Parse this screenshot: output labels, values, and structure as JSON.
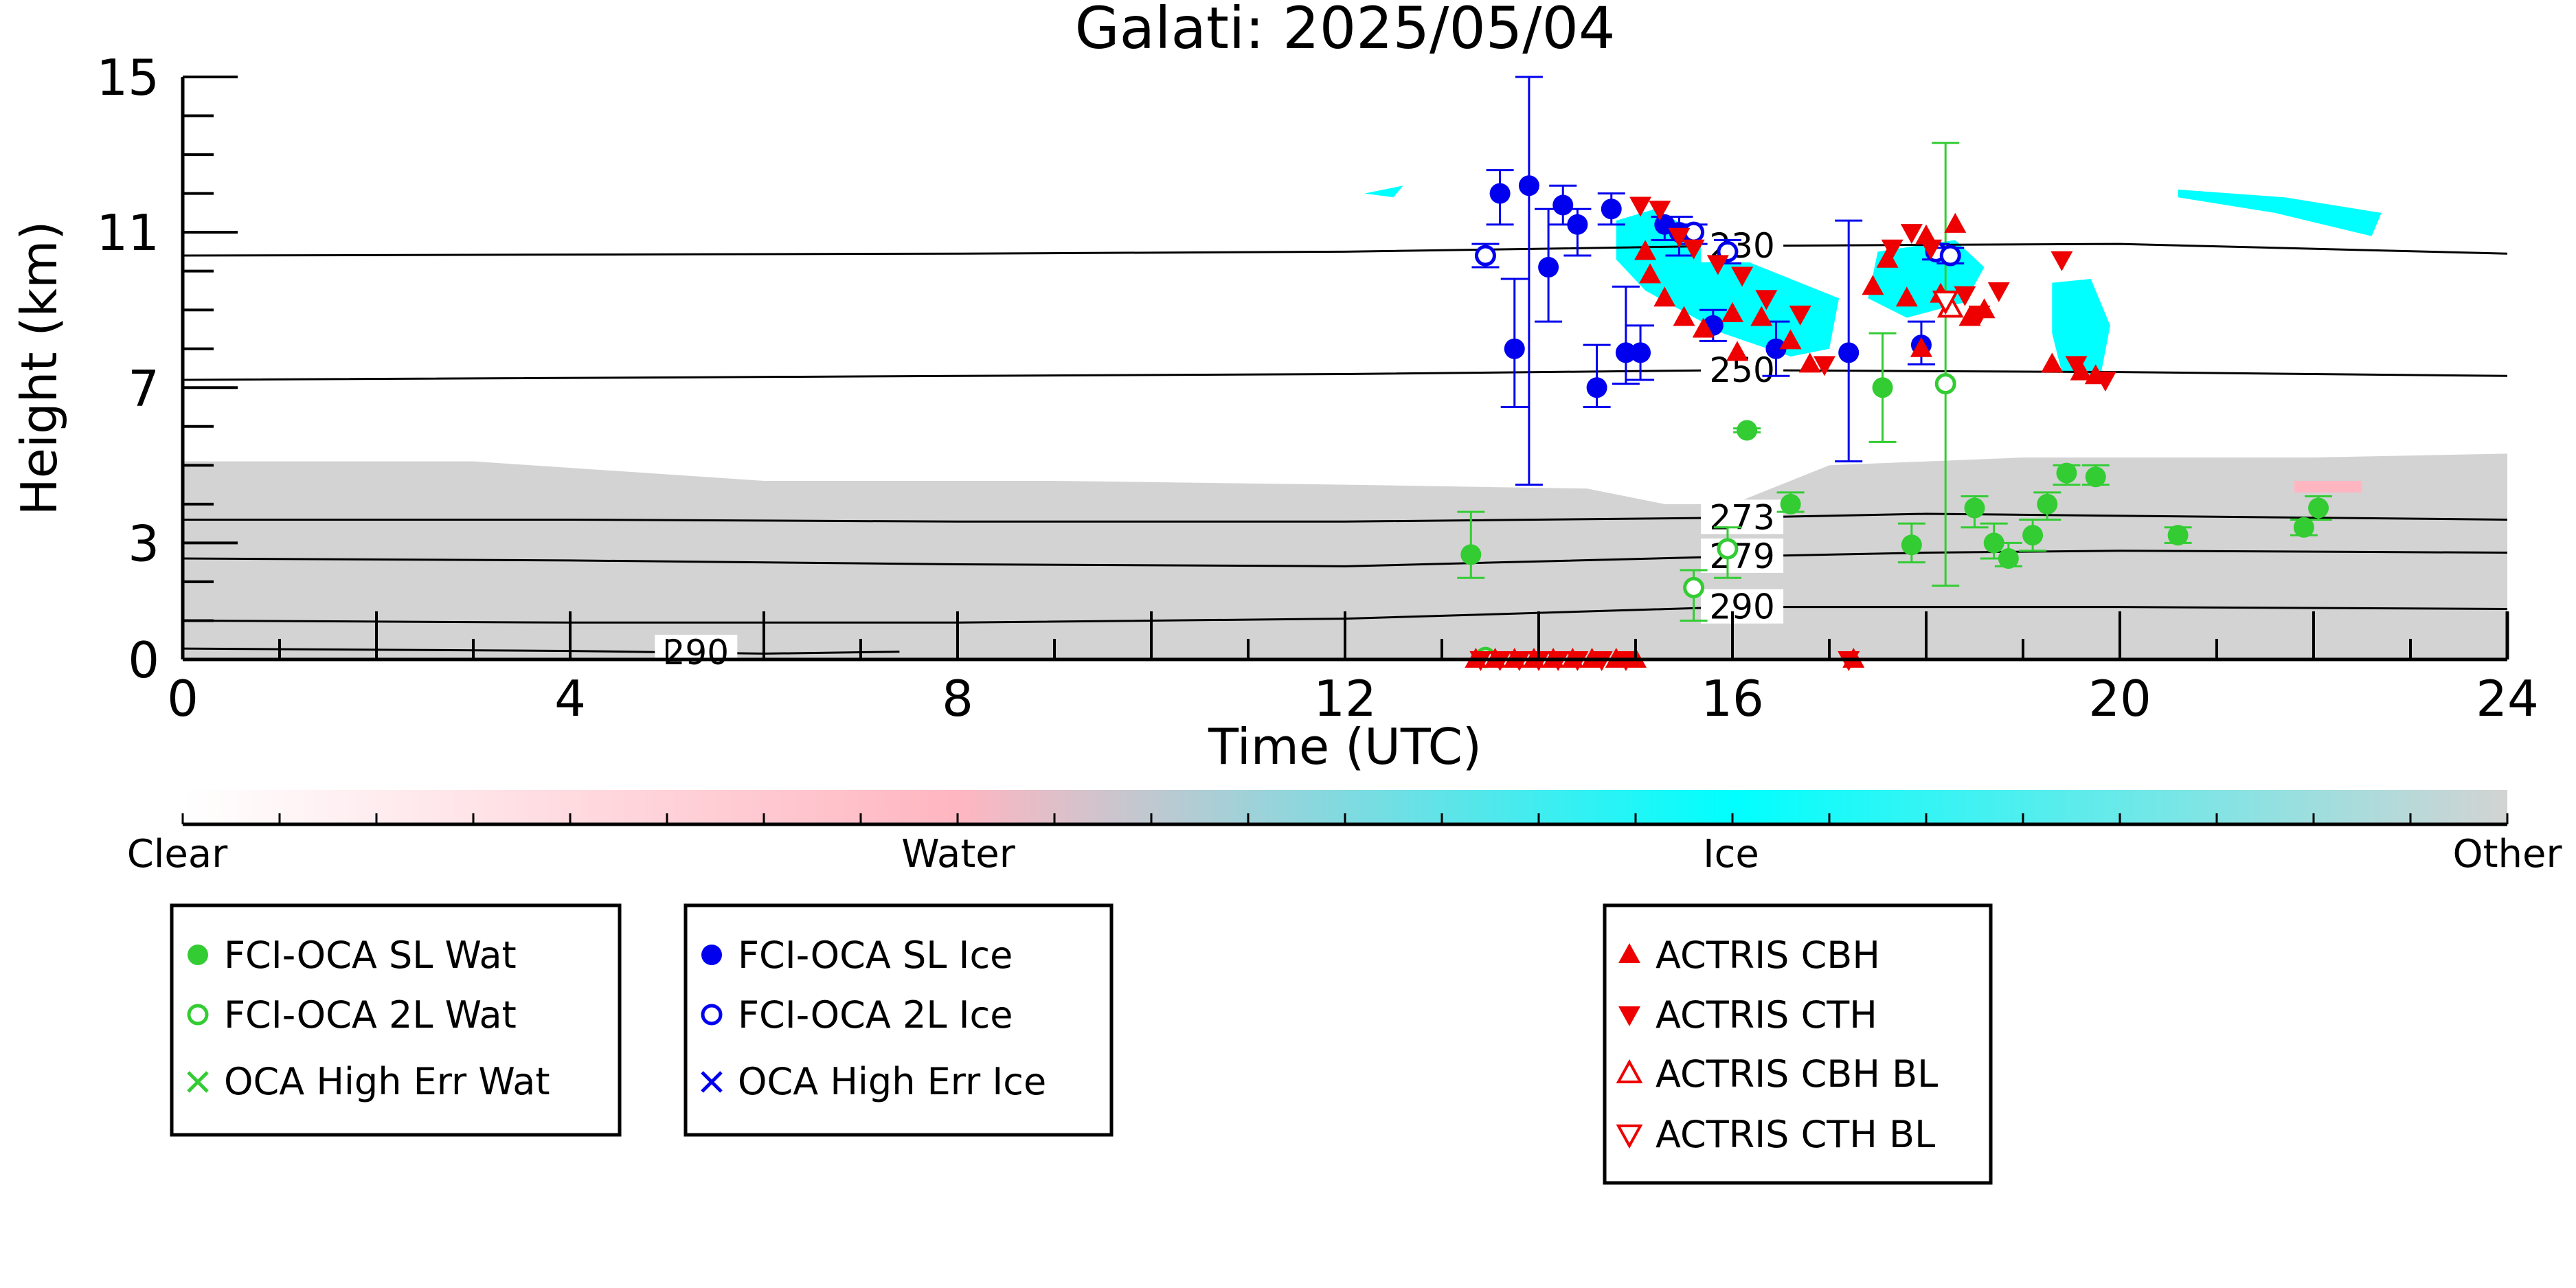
{
  "chart_data": {
    "type": "scatter",
    "title": "Galati: 2025/05/04",
    "xlabel": "Time (UTC)",
    "ylabel": "Height (km)",
    "xlim": [
      0,
      24
    ],
    "ylim": [
      0,
      15
    ],
    "x_ticks": [
      "0",
      "4",
      "8",
      "12",
      "16",
      "20",
      "24"
    ],
    "y_ticks": [
      "0",
      "3",
      "7",
      "11",
      "15"
    ],
    "grid": false,
    "colorbar": {
      "labels": [
        "Clear",
        "Water",
        "Ice",
        "Other"
      ],
      "colors": [
        "#ffffff",
        "#ffb6c1",
        "#00ffff",
        "#d3d3d3"
      ]
    },
    "isotherms": [
      {
        "label": "230",
        "label_x": 16.1,
        "points": [
          [
            0,
            10.4
          ],
          [
            8,
            10.45
          ],
          [
            12,
            10.5
          ],
          [
            16,
            10.65
          ],
          [
            20,
            10.7
          ],
          [
            24,
            10.45
          ]
        ]
      },
      {
        "label": "250",
        "label_x": 16.1,
        "points": [
          [
            0,
            7.2
          ],
          [
            8,
            7.3
          ],
          [
            12,
            7.35
          ],
          [
            16,
            7.45
          ],
          [
            20,
            7.4
          ],
          [
            24,
            7.3
          ]
        ]
      },
      {
        "label": "273",
        "label_x": 16.1,
        "points": [
          [
            0,
            3.6
          ],
          [
            4,
            3.6
          ],
          [
            8,
            3.55
          ],
          [
            12,
            3.55
          ],
          [
            16,
            3.65
          ],
          [
            18,
            3.75
          ],
          [
            20,
            3.7
          ],
          [
            24,
            3.6
          ]
        ]
      },
      {
        "label": "279",
        "label_x": 16.1,
        "points": [
          [
            0,
            2.6
          ],
          [
            4,
            2.55
          ],
          [
            8,
            2.45
          ],
          [
            12,
            2.4
          ],
          [
            16,
            2.65
          ],
          [
            18,
            2.75
          ],
          [
            20,
            2.8
          ],
          [
            24,
            2.75
          ]
        ]
      },
      {
        "label": "290",
        "label_x": 16.1,
        "points": [
          [
            0,
            1.0
          ],
          [
            4,
            0.95
          ],
          [
            8,
            0.95
          ],
          [
            12,
            1.05
          ],
          [
            16,
            1.35
          ],
          [
            18,
            1.35
          ],
          [
            20,
            1.35
          ],
          [
            24,
            1.3
          ]
        ]
      },
      {
        "label": "290",
        "label_x": 5.3,
        "points": [
          [
            0,
            0.28
          ],
          [
            4,
            0.22
          ],
          [
            6,
            0.15
          ],
          [
            7.4,
            0.2
          ]
        ]
      }
    ],
    "cloud_regions": [
      {
        "class": "Other",
        "color": "#d3d3d3",
        "points": [
          [
            0,
            0
          ],
          [
            0,
            5.1
          ],
          [
            3,
            5.1
          ],
          [
            6,
            4.6
          ],
          [
            9,
            4.6
          ],
          [
            12,
            4.5
          ],
          [
            14.5,
            4.4
          ],
          [
            15.3,
            4.0
          ],
          [
            16,
            4.0
          ],
          [
            17,
            5.0
          ],
          [
            19,
            5.2
          ],
          [
            22,
            5.2
          ],
          [
            24,
            5.3
          ],
          [
            24,
            0
          ]
        ]
      },
      {
        "class": "Ice",
        "color": "#00ffff",
        "points": [
          [
            14.8,
            11.3
          ],
          [
            15.2,
            11.6
          ],
          [
            16.2,
            10.2
          ],
          [
            17.1,
            9.3
          ],
          [
            17,
            8.0
          ],
          [
            16.6,
            7.8
          ],
          [
            15.9,
            8.4
          ],
          [
            15.1,
            9.5
          ],
          [
            14.8,
            10.3
          ]
        ]
      },
      {
        "class": "Ice",
        "color": "#00ffff",
        "points": [
          [
            17.5,
            10.5
          ],
          [
            18.3,
            10.8
          ],
          [
            18.6,
            10.1
          ],
          [
            18.4,
            9.2
          ],
          [
            17.8,
            8.8
          ],
          [
            17.4,
            9.3
          ]
        ]
      },
      {
        "class": "Ice",
        "color": "#00ffff",
        "points": [
          [
            19.3,
            9.7
          ],
          [
            19.7,
            9.8
          ],
          [
            19.9,
            8.6
          ],
          [
            19.8,
            7.3
          ],
          [
            19.4,
            7.4
          ],
          [
            19.3,
            8.4
          ]
        ]
      },
      {
        "class": "Ice",
        "color": "#00ffff",
        "points": [
          [
            20.6,
            12.1
          ],
          [
            21.7,
            11.9
          ],
          [
            22.7,
            11.5
          ],
          [
            22.6,
            10.9
          ],
          [
            21.6,
            11.5
          ],
          [
            20.6,
            11.9
          ]
        ]
      },
      {
        "class": "Ice",
        "color": "#00ffff",
        "points": [
          [
            12.2,
            12.0
          ],
          [
            12.6,
            12.2
          ],
          [
            12.5,
            11.9
          ]
        ]
      },
      {
        "class": "Water",
        "color": "#ffb6c1",
        "points": [
          [
            21.8,
            4.6
          ],
          [
            22.5,
            4.6
          ],
          [
            22.5,
            4.3
          ],
          [
            21.8,
            4.3
          ]
        ]
      }
    ],
    "series": [
      {
        "name": "FCI-OCA SL Wat",
        "marker": "circle-filled",
        "color": "#33cc33",
        "points": [
          [
            13.3,
            2.7,
            2.1,
            3.8
          ],
          [
            16.15,
            5.9,
            5.85,
            5.95
          ],
          [
            16.6,
            4.0,
            3.8,
            4.3
          ],
          [
            17.55,
            7.0,
            5.6,
            8.4
          ],
          [
            17.85,
            2.95,
            2.5,
            3.5
          ],
          [
            18.5,
            3.9,
            3.4,
            4.2
          ],
          [
            18.7,
            3.0,
            2.6,
            3.5
          ],
          [
            18.85,
            2.6,
            2.4,
            3.0
          ],
          [
            19.1,
            3.2,
            2.8,
            3.6
          ],
          [
            19.25,
            4.0,
            3.6,
            4.3
          ],
          [
            19.45,
            4.8,
            4.5,
            5.0
          ],
          [
            19.75,
            4.7,
            4.5,
            5.0
          ],
          [
            20.6,
            3.2,
            3.0,
            3.4
          ],
          [
            21.9,
            3.4,
            3.2,
            3.6
          ],
          [
            22.05,
            3.9,
            3.6,
            4.2
          ]
        ]
      },
      {
        "name": "FCI-OCA 2L Wat",
        "marker": "circle-open",
        "color": "#33cc33",
        "points": [
          [
            13.45,
            0.05,
            0.0,
            0.1
          ],
          [
            15.6,
            1.85,
            1.0,
            2.3
          ],
          [
            15.95,
            2.85,
            2.1,
            3.4
          ],
          [
            18.2,
            7.1,
            1.9,
            13.3
          ]
        ]
      },
      {
        "name": "FCI-OCA SL Ice",
        "marker": "circle-filled",
        "color": "#0000ee",
        "points": [
          [
            13.6,
            12.0,
            11.2,
            12.6
          ],
          [
            13.75,
            8.0,
            6.5,
            9.8
          ],
          [
            13.9,
            12.2,
            4.5,
            15.0
          ],
          [
            14.1,
            10.1,
            8.7,
            11.6
          ],
          [
            14.25,
            11.7,
            11.2,
            12.2
          ],
          [
            14.4,
            11.2,
            10.4,
            11.6
          ],
          [
            14.6,
            7.0,
            6.5,
            8.1
          ],
          [
            14.75,
            11.6,
            11.2,
            12.0
          ],
          [
            14.9,
            7.9,
            7.1,
            9.6
          ],
          [
            15.05,
            7.9,
            7.2,
            8.6
          ],
          [
            15.3,
            11.2,
            10.8,
            11.4
          ],
          [
            15.45,
            11.0,
            10.4,
            11.4
          ],
          [
            15.8,
            8.6,
            8.2,
            9.0
          ],
          [
            16.45,
            8.0,
            7.3,
            8.7
          ],
          [
            17.2,
            7.9,
            5.1,
            11.3
          ],
          [
            17.95,
            8.1,
            7.6,
            8.7
          ]
        ]
      },
      {
        "name": "FCI-OCA 2L Ice",
        "marker": "circle-open",
        "color": "#0000ee",
        "points": [
          [
            13.45,
            10.4,
            10.1,
            10.7
          ],
          [
            15.6,
            11.0,
            10.7,
            11.2
          ],
          [
            15.95,
            10.5,
            10.2,
            10.8
          ],
          [
            18.1,
            10.5,
            10.3,
            10.7
          ],
          [
            18.25,
            10.4,
            10.2,
            10.6
          ]
        ]
      },
      {
        "name": "OCA High Err Wat",
        "marker": "x",
        "color": "#33cc33",
        "points": []
      },
      {
        "name": "OCA High Err Ice",
        "marker": "x",
        "color": "#0000ee",
        "points": []
      },
      {
        "name": "ACTRIS CBH",
        "marker": "triangle-up-filled",
        "color": "#ee0000",
        "points": [
          [
            15.1,
            10.5
          ],
          [
            15.15,
            9.9
          ],
          [
            15.3,
            9.3
          ],
          [
            15.5,
            8.8
          ],
          [
            15.7,
            8.5
          ],
          [
            16.0,
            8.9
          ],
          [
            16.05,
            7.9
          ],
          [
            16.3,
            8.8
          ],
          [
            16.6,
            8.2
          ],
          [
            16.8,
            7.6
          ],
          [
            17.45,
            9.6
          ],
          [
            17.6,
            10.3
          ],
          [
            17.8,
            9.3
          ],
          [
            17.95,
            8.0
          ],
          [
            18.0,
            10.9
          ],
          [
            18.15,
            9.4
          ],
          [
            18.3,
            11.2
          ],
          [
            18.45,
            8.8
          ],
          [
            18.6,
            9.0
          ],
          [
            19.3,
            7.6
          ],
          [
            19.6,
            7.4
          ],
          [
            19.75,
            7.3
          ],
          [
            13.35,
            0.0
          ],
          [
            13.55,
            0.0
          ],
          [
            13.75,
            0.0
          ],
          [
            13.95,
            0.0
          ],
          [
            14.15,
            0.0
          ],
          [
            14.35,
            0.0
          ],
          [
            14.55,
            0.0
          ],
          [
            14.8,
            0.0
          ],
          [
            15.0,
            0.0
          ],
          [
            17.25,
            0.0
          ]
        ]
      },
      {
        "name": "ACTRIS CTH",
        "marker": "triangle-down-filled",
        "color": "#ee0000",
        "points": [
          [
            15.05,
            11.7
          ],
          [
            15.25,
            11.6
          ],
          [
            15.45,
            10.9
          ],
          [
            15.6,
            10.6
          ],
          [
            15.85,
            10.2
          ],
          [
            16.1,
            9.9
          ],
          [
            16.35,
            9.3
          ],
          [
            16.7,
            8.9
          ],
          [
            16.95,
            7.6
          ],
          [
            17.65,
            10.6
          ],
          [
            17.85,
            11.0
          ],
          [
            18.05,
            10.6
          ],
          [
            18.4,
            9.4
          ],
          [
            18.55,
            8.9
          ],
          [
            18.75,
            9.5
          ],
          [
            19.4,
            10.3
          ],
          [
            19.55,
            7.6
          ],
          [
            19.85,
            7.2
          ],
          [
            13.4,
            0.0
          ],
          [
            13.6,
            0.0
          ],
          [
            13.8,
            0.0
          ],
          [
            14.0,
            0.0
          ],
          [
            14.2,
            0.0
          ],
          [
            14.4,
            0.0
          ],
          [
            14.65,
            0.0
          ],
          [
            14.9,
            0.0
          ],
          [
            17.2,
            0.0
          ]
        ]
      },
      {
        "name": "ACTRIS CBH BL",
        "marker": "triangle-up-open",
        "color": "#ee0000",
        "points": [
          [
            18.25,
            9.05
          ]
        ]
      },
      {
        "name": "ACTRIS CTH BL",
        "marker": "triangle-down-open",
        "color": "#ee0000",
        "points": [
          [
            18.2,
            9.25
          ]
        ]
      }
    ],
    "legend_groups": [
      [
        "FCI-OCA SL Wat",
        "FCI-OCA 2L Wat",
        "OCA High Err Wat"
      ],
      [
        "FCI-OCA SL Ice",
        "FCI-OCA 2L Ice",
        "OCA High Err Ice"
      ],
      [
        "ACTRIS CBH",
        "ACTRIS CTH",
        "ACTRIS CBH BL",
        "ACTRIS CTH BL"
      ]
    ]
  }
}
